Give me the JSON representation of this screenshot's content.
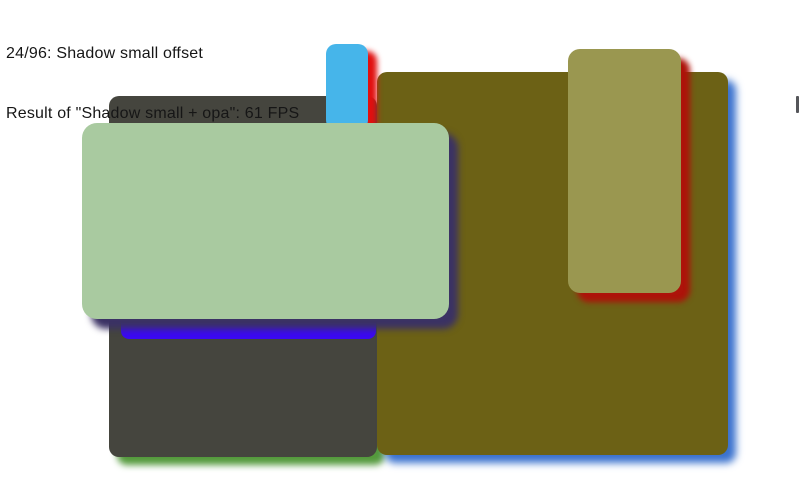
{
  "header": {
    "line1": "24/96: Shadow small offset",
    "line2": "Result of \"Shadow small + opa\": 61 FPS",
    "progress": "24/96",
    "current_test_name": "Shadow small offset",
    "previous_test_name": "Shadow small + opa",
    "fps": "61"
  },
  "scene": {
    "description": "benchmark test canvas with rounded rectangles casting small offset colored shadows",
    "shapes": [
      {
        "name": "dark-gray-rect",
        "fill": "#45453e",
        "shadow_color": "#549a3c"
      },
      {
        "name": "deep-blue-rect",
        "fill": "#3b09f1",
        "shadow_color": null
      },
      {
        "name": "olive-rect",
        "fill": "#6c6115",
        "shadow_color": "#3a72ce"
      },
      {
        "name": "light-blue-rect",
        "fill": "#46b5ea",
        "shadow_color": "#e11010"
      },
      {
        "name": "sage-green-rect",
        "fill": "#a9caa0",
        "shadow_color": "#3b3264"
      },
      {
        "name": "khaki-rect",
        "fill": "#9a9750",
        "shadow_color": "#ad130a"
      },
      {
        "name": "edge-fragment",
        "fill": "#55565a",
        "shadow_color": null
      }
    ],
    "background": "#ffffff",
    "text_color": "#161616"
  }
}
